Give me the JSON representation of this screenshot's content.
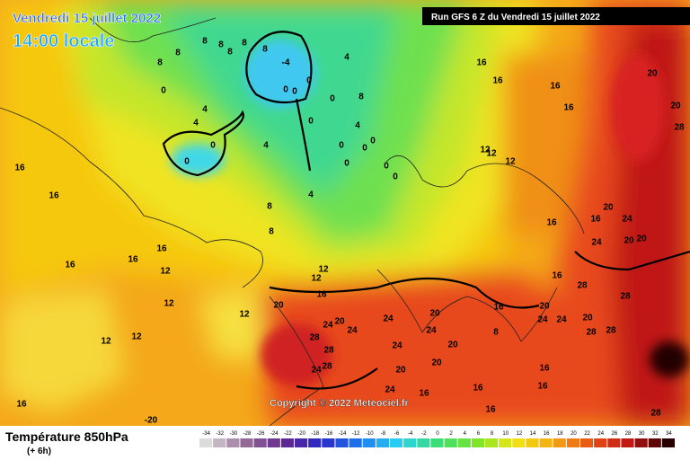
{
  "header": {
    "date": "Vendredi 15 juillet 2022",
    "time": "14:00 locale",
    "run": "Run GFS 6 Z du Vendredi 15 juillet 2022"
  },
  "map": {
    "copyright": "Copyright © 2022 Meteociel.fr",
    "contour_labels": [
      16,
      16,
      16,
      16,
      16,
      12,
      12,
      12,
      12,
      16,
      12,
      -20,
      0,
      0,
      4,
      4,
      0,
      8,
      8,
      8,
      8,
      8,
      8,
      8,
      -4,
      0,
      0,
      0,
      0,
      4,
      8,
      4,
      4,
      0,
      0,
      0,
      0,
      0,
      0,
      0,
      4,
      8,
      8,
      12,
      12,
      16,
      20,
      24,
      20,
      24,
      28,
      28,
      24,
      28,
      24,
      24,
      20,
      24,
      20,
      20,
      20,
      24,
      16,
      16,
      16,
      16,
      8,
      24,
      20,
      24,
      20,
      28,
      28,
      28,
      28,
      24,
      16,
      20,
      24,
      20,
      20,
      16,
      16,
      16,
      16,
      12,
      12,
      12,
      16,
      16,
      16,
      16,
      20,
      20,
      28,
      28
    ]
  },
  "legend": {
    "title": "Température 850hPa",
    "step": "(+ 6h)",
    "scale": [
      -34,
      -32,
      -30,
      -28,
      -26,
      -24,
      -22,
      -20,
      -18,
      -16,
      -14,
      -12,
      -10,
      -8,
      -6,
      -4,
      -2,
      0,
      2,
      4,
      6,
      8,
      10,
      12,
      14,
      16,
      18,
      20,
      22,
      24,
      26,
      28,
      30,
      32,
      34
    ]
  }
}
